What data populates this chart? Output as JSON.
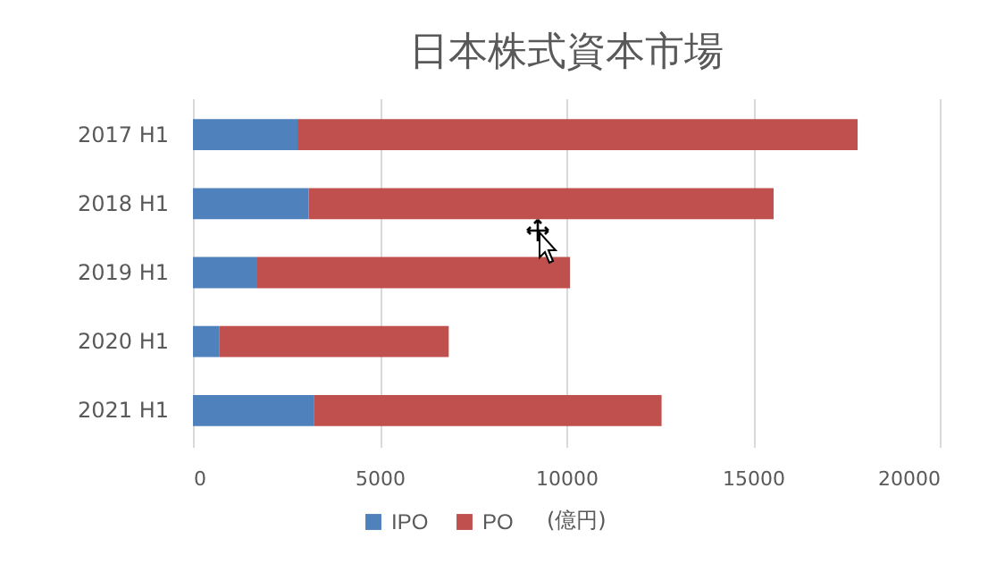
{
  "chart_data": {
    "type": "bar",
    "title": "日本株式資本市場",
    "orientation": "horizontal",
    "stacked": true,
    "categories": [
      "2017 H1",
      "2018 H1",
      "2019 H1",
      "2020 H1",
      "2021 H1"
    ],
    "series": [
      {
        "name": "IPO",
        "color": "#4f81bd",
        "values": [
          2800,
          3100,
          1700,
          700,
          3250
        ]
      },
      {
        "name": "PO",
        "color": "#c0504d",
        "values": [
          15000,
          12450,
          8400,
          6150,
          9300
        ]
      }
    ],
    "xlim": [
      0,
      20000
    ],
    "xticks": [
      0,
      5000,
      10000,
      15000,
      20000
    ],
    "grid": "x",
    "legend": "bottom",
    "annotations": [
      "(億円)"
    ]
  }
}
